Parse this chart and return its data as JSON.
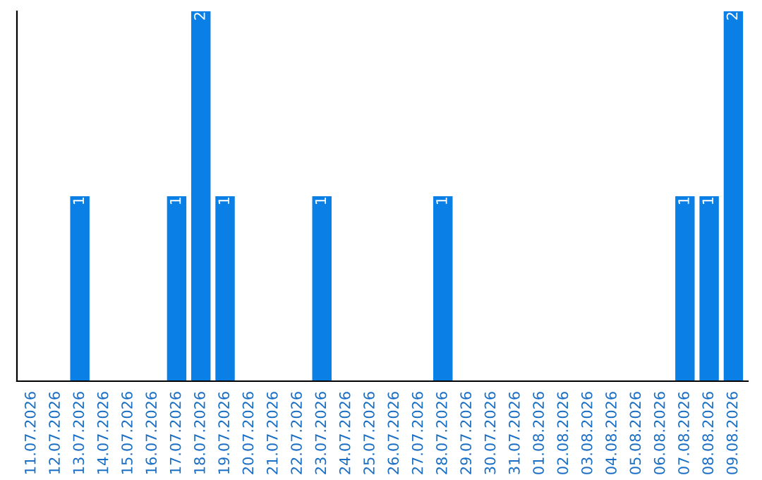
{
  "chart_data": {
    "type": "bar",
    "categories": [
      "11.07.2026",
      "12.07.2026",
      "13.07.2026",
      "14.07.2026",
      "15.07.2026",
      "16.07.2026",
      "17.07.2026",
      "18.07.2026",
      "19.07.2026",
      "20.07.2026",
      "21.07.2026",
      "22.07.2026",
      "23.07.2026",
      "24.07.2026",
      "25.07.2026",
      "26.07.2026",
      "27.07.2026",
      "28.07.2026",
      "29.07.2026",
      "30.07.2026",
      "31.07.2026",
      "01.08.2026",
      "02.08.2026",
      "03.08.2026",
      "04.08.2026",
      "05.08.2026",
      "06.08.2026",
      "07.08.2026",
      "08.08.2026",
      "09.08.2026"
    ],
    "values": [
      0,
      0,
      1,
      0,
      0,
      0,
      1,
      2,
      1,
      0,
      0,
      0,
      1,
      0,
      0,
      0,
      0,
      1,
      0,
      0,
      0,
      0,
      0,
      0,
      0,
      0,
      0,
      1,
      1,
      2
    ],
    "value_labels": [
      null,
      null,
      "1",
      null,
      null,
      null,
      "1",
      "2",
      "1",
      null,
      null,
      null,
      "1",
      null,
      null,
      null,
      null,
      "1",
      null,
      null,
      null,
      null,
      null,
      null,
      null,
      null,
      null,
      "1",
      "1",
      "2"
    ],
    "color": "#0a7fe6",
    "grid": false,
    "legend": false
  }
}
